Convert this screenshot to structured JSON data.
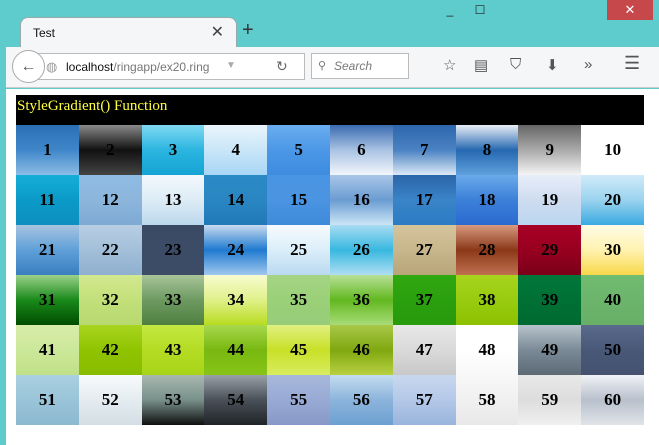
{
  "window": {
    "minimize": "_",
    "maximize": "☐",
    "close": "✕"
  },
  "tab": {
    "title": "Test",
    "close": "✕",
    "new_tab": "+"
  },
  "toolbar": {
    "back": "←",
    "url_host": "localhost",
    "url_path": "/ringapp/ex20.ring",
    "dropdown": "▼",
    "reload": "↻",
    "search_icon": "🔍",
    "search_placeholder": "Search",
    "icons": [
      "☆",
      "▤",
      "⛉",
      "⬇",
      "»",
      "☰"
    ]
  },
  "page": {
    "header": "StyleGradient() Function"
  },
  "cells": [
    [
      "1",
      "#2a6fb5,#3f86c9,#8cbde6"
    ],
    [
      "2",
      "#8a8a8a,#111,#444"
    ],
    [
      "3",
      "#7fd9f3,#2bb5e0,#15a4d4"
    ],
    [
      "4",
      "#eaf5fd,#c9e6f8,#a8d6f5"
    ],
    [
      "5",
      "#6aaef0,#4c97e6,#3d8ce0"
    ],
    [
      "6",
      "#3a6bb0,#a9c3e3,#f2f6fb"
    ],
    [
      "7",
      "#2e66ad,#4a82c3,#dce9f6"
    ],
    [
      "8",
      "#e8eef6,#2668b0,#5fa0dc"
    ],
    [
      "9",
      "#666666,#aaaaaa,#f5f5f5"
    ],
    [
      "10",
      "#ffffff,#ffffff,#ffffff"
    ],
    [
      "11",
      "#15aed8,#0b9ac8,#0d8fbf"
    ],
    [
      "12",
      "#8fbbe3,#8cb6dc,#7da9d3"
    ],
    [
      "13",
      "#f3f8fc,#ddecf6,#bcd8ec"
    ],
    [
      "14",
      "#2a8ac5,#2a86c2,#2079b6"
    ],
    [
      "15",
      "#4a95e3,#4a94e2,#3f8ad9"
    ],
    [
      "16",
      "#a9c6e8,#6a9cd2,#cce6f6"
    ],
    [
      "17",
      "#2c64a8,#3a84c8,#2b7bc4"
    ],
    [
      "18",
      "#6aaaea,#3b80d8,#2a6ad0"
    ],
    [
      "19",
      "#e8eefa,#cfdcf0,#bad6f0"
    ],
    [
      "20",
      "#d0ebf8,#9ad3ef,#3aa9e0"
    ],
    [
      "21",
      "#a8c4e0,#5fa0d8,#3a7ec0"
    ],
    [
      "22",
      "#b8cfe3,#a3bfd9,#8fb0d0"
    ],
    [
      "23",
      "#3a4a64,#3c4b66,#3c4b66"
    ],
    [
      "24",
      "#c7daf0,#1f7ad0,#a0c8ee"
    ],
    [
      "25",
      "#f7fbfe,#dbeef9,#bad9f1"
    ],
    [
      "26",
      "#a8dcf2,#38b8e0,#b0def2"
    ],
    [
      "27",
      "#d4c49c,#c8b68c,#b8a578"
    ],
    [
      "28",
      "#d89a80,#8a3818,#c07050"
    ],
    [
      "29",
      "#a80026,#980020,#7a0018"
    ],
    [
      "30",
      "#fffbe6,#fff2b0,#f8d84a"
    ],
    [
      "31",
      "#9bd08a,#1a8a1a,#004c00"
    ],
    [
      "32",
      "#d3e88f,#c2e07a,#b8d870"
    ],
    [
      "33",
      "#a8c498,#6e9a62,#4f8040"
    ],
    [
      "34",
      "#f8fccf,#e0f08a,#b8dc20"
    ],
    [
      "35",
      "#a5d584,#9ad078,#98cc7a"
    ],
    [
      "36",
      "#b8e098,#62b820,#a8dc78"
    ],
    [
      "37",
      "#30a810,#2aa00e,#289a0c"
    ],
    [
      "38",
      "#a8d41e,#98cc10,#8cc000"
    ],
    [
      "39",
      "#00783a,#007034,#006a30"
    ],
    [
      "40",
      "#70bc70,#6cb46c,#68b068"
    ],
    [
      "41",
      "#d8eda8,#cce89a,#c0e088"
    ],
    [
      "42",
      "#a8d420,#90c400,#88bc00"
    ],
    [
      "43",
      "#c4e840,#b4dc24,#a8d418"
    ],
    [
      "44",
      "#a8d84c,#78b810,#88c418"
    ],
    [
      "45",
      "#e0f080,#c8e028,#d8ec60"
    ],
    [
      "46",
      "#a8c848,#80a810,#b8d040"
    ],
    [
      "47",
      "#e8e8e8,#dadada,#c8c8c8"
    ],
    [
      "48",
      "#ffffff,#ffffff,#f8f8f8"
    ],
    [
      "49",
      "#b8c4cc,#7a8a96,#5c6a76"
    ],
    [
      "50",
      "#5a6a8c,#4a5878,#445270"
    ],
    [
      "51",
      "#aad0e2,#9ac4d8,#8cb8d0"
    ],
    [
      "52",
      "#f8fafc,#e4ecf0,#d4dee4"
    ],
    [
      "53",
      "#a8b8b0,#78908a,#101010"
    ],
    [
      "54",
      "#9aa0a8,#4a5058,#202428"
    ],
    [
      "55",
      "#a8b8dc,#98aad4,#8898c8"
    ],
    [
      "56",
      "#c4dcf0,#8cb4dc,#6ca0d0"
    ],
    [
      "57",
      "#c8d8ee,#b4c8e8,#98b4dc"
    ],
    [
      "58",
      "#f8f8f8,#f0f0f0,#e8e8e8"
    ],
    [
      "59",
      "#e8e8e8,#dddddd,#f0f0f0"
    ],
    [
      "60",
      "#f0f2f6,#b8c0cc,#e0e4e8"
    ]
  ]
}
